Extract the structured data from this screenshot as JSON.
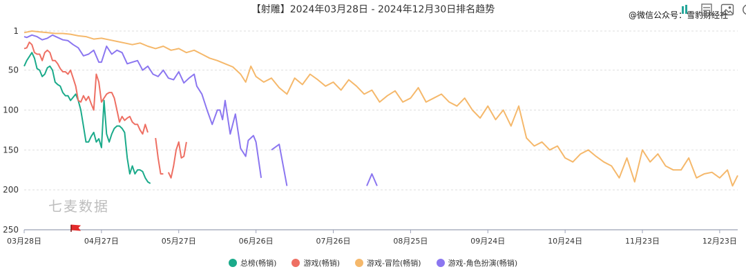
{
  "header": {
    "wechat_label": "@微信公众号：雪豹财经社",
    "toolbar": [
      {
        "icon": "bar-chart-icon"
      },
      {
        "icon": "list-icon"
      },
      {
        "icon": "save-image-icon"
      },
      {
        "icon": "refresh-icon"
      }
    ]
  },
  "brand_watermark": "七麦数据",
  "chart_data": {
    "type": "line",
    "title": "【射雕】2024年03月28日 - 2024年12月30日排名趋势",
    "x_ticks": [
      "03月28日",
      "04月27日",
      "05月27日",
      "06月26日",
      "07月26日",
      "08月25日",
      "09月24日",
      "10月24日",
      "11月23日",
      "12月23日"
    ],
    "y_ticks": [
      "1",
      "50",
      "100",
      "150",
      "200",
      "250"
    ],
    "ylim": [
      1,
      250
    ],
    "y_inverted": true,
    "grid": true,
    "legend_position": "bottom",
    "date_range": [
      "2024-03-28",
      "2024-12-30"
    ],
    "series": [
      {
        "name": "总榜(畅销)",
        "color": "#1aaa8a",
        "points": [
          [
            "2024-03-28",
            45
          ],
          [
            "2024-03-29",
            38
          ],
          [
            "2024-03-31",
            28
          ],
          [
            "2024-04-01",
            35
          ],
          [
            "2024-04-02",
            48
          ],
          [
            "2024-04-03",
            50
          ],
          [
            "2024-04-04",
            58
          ],
          [
            "2024-04-05",
            55
          ],
          [
            "2024-04-06",
            47
          ],
          [
            "2024-04-07",
            45
          ],
          [
            "2024-04-08",
            50
          ],
          [
            "2024-04-09",
            65
          ],
          [
            "2024-04-10",
            68
          ],
          [
            "2024-04-11",
            70
          ],
          [
            "2024-04-12",
            78
          ],
          [
            "2024-04-13",
            82
          ],
          [
            "2024-04-14",
            82
          ],
          [
            "2024-04-15",
            88
          ],
          [
            "2024-04-16",
            84
          ],
          [
            "2024-04-17",
            80
          ],
          [
            "2024-04-18",
            88
          ],
          [
            "2024-04-19",
            100
          ],
          [
            "2024-04-20",
            120
          ],
          [
            "2024-04-21",
            140
          ],
          [
            "2024-04-22",
            140
          ],
          [
            "2024-04-23",
            133
          ],
          [
            "2024-04-24",
            128
          ],
          [
            "2024-04-25",
            140
          ],
          [
            "2024-04-26",
            136
          ],
          [
            "2024-04-27",
            147
          ],
          [
            "2024-04-28",
            88
          ],
          [
            "2024-04-29",
            130
          ],
          [
            "2024-04-30",
            140
          ],
          [
            "2024-05-01",
            130
          ],
          [
            "2024-05-02",
            123
          ],
          [
            "2024-05-03",
            120
          ],
          [
            "2024-05-04",
            120
          ],
          [
            "2024-05-05",
            123
          ],
          [
            "2024-05-06",
            128
          ],
          [
            "2024-05-07",
            160
          ],
          [
            "2024-05-08",
            180
          ],
          [
            "2024-05-09",
            170
          ],
          [
            "2024-05-10",
            180
          ],
          [
            "2024-05-11",
            175
          ],
          [
            "2024-05-12",
            175
          ],
          [
            "2024-05-13",
            177
          ],
          [
            "2024-05-14",
            185
          ],
          [
            "2024-05-15",
            190
          ],
          [
            "2024-05-16",
            192
          ]
        ]
      },
      {
        "name": "游戏(畅销)",
        "color": "#ee6f63",
        "points": [
          [
            "2024-03-28",
            23
          ],
          [
            "2024-03-29",
            22
          ],
          [
            "2024-03-30",
            15
          ],
          [
            "2024-03-31",
            18
          ],
          [
            "2024-04-01",
            28
          ],
          [
            "2024-04-02",
            30
          ],
          [
            "2024-04-03",
            30
          ],
          [
            "2024-04-04",
            38
          ],
          [
            "2024-04-05",
            28
          ],
          [
            "2024-04-06",
            25
          ],
          [
            "2024-04-07",
            28
          ],
          [
            "2024-04-08",
            38
          ],
          [
            "2024-04-09",
            38
          ],
          [
            "2024-04-10",
            42
          ],
          [
            "2024-04-11",
            48
          ],
          [
            "2024-04-12",
            52
          ],
          [
            "2024-04-13",
            52
          ],
          [
            "2024-04-14",
            55
          ],
          [
            "2024-04-15",
            50
          ],
          [
            "2024-04-16",
            60
          ],
          [
            "2024-04-17",
            70
          ],
          [
            "2024-04-18",
            88
          ],
          [
            "2024-04-19",
            90
          ],
          [
            "2024-04-20",
            82
          ],
          [
            "2024-04-21",
            88
          ],
          [
            "2024-04-22",
            83
          ],
          [
            "2024-04-23",
            92
          ],
          [
            "2024-04-24",
            100
          ],
          [
            "2024-04-25",
            55
          ],
          [
            "2024-04-26",
            65
          ],
          [
            "2024-04-27",
            90
          ],
          [
            "2024-04-28",
            85
          ],
          [
            "2024-04-29",
            80
          ],
          [
            "2024-04-30",
            78
          ],
          [
            "2024-05-01",
            78
          ],
          [
            "2024-05-02",
            85
          ],
          [
            "2024-05-03",
            100
          ],
          [
            "2024-05-04",
            115
          ],
          [
            "2024-05-05",
            108
          ],
          [
            "2024-05-06",
            113
          ],
          [
            "2024-05-07",
            110
          ],
          [
            "2024-05-08",
            108
          ],
          [
            "2024-05-09",
            115
          ],
          [
            "2024-05-10",
            118
          ],
          [
            "2024-05-11",
            118
          ],
          [
            "2024-05-12",
            125
          ],
          [
            "2024-05-13",
            130
          ],
          [
            "2024-05-14",
            118
          ],
          [
            "2024-05-15",
            128
          ],
          null,
          [
            "2024-05-18",
            135
          ],
          [
            "2024-05-19",
            160
          ],
          [
            "2024-05-20",
            180
          ],
          [
            "2024-05-21",
            180
          ],
          null,
          [
            "2024-05-23",
            178
          ],
          [
            "2024-05-24",
            185
          ],
          [
            "2024-05-25",
            170
          ],
          [
            "2024-05-26",
            150
          ],
          [
            "2024-05-27",
            140
          ],
          [
            "2024-05-28",
            160
          ],
          [
            "2024-05-29",
            158
          ],
          [
            "2024-05-30",
            140
          ],
          null,
          [
            "2024-06-01",
            185
          ]
        ]
      },
      {
        "name": "游戏-冒险(畅销)",
        "color": "#f5b86b",
        "points": [
          [
            "2024-03-28",
            3
          ],
          [
            "2024-03-31",
            1
          ],
          [
            "2024-04-03",
            2
          ],
          [
            "2024-04-06",
            3
          ],
          [
            "2024-04-09",
            4
          ],
          [
            "2024-04-12",
            4
          ],
          [
            "2024-04-15",
            5
          ],
          [
            "2024-04-18",
            7
          ],
          [
            "2024-04-21",
            8
          ],
          [
            "2024-04-24",
            11
          ],
          [
            "2024-04-27",
            10
          ],
          [
            "2024-04-30",
            12
          ],
          [
            "2024-05-03",
            14
          ],
          [
            "2024-05-06",
            16
          ],
          [
            "2024-05-09",
            18
          ],
          [
            "2024-05-12",
            16
          ],
          [
            "2024-05-15",
            20
          ],
          [
            "2024-05-18",
            23
          ],
          [
            "2024-05-21",
            20
          ],
          [
            "2024-05-24",
            25
          ],
          [
            "2024-05-27",
            23
          ],
          [
            "2024-05-30",
            28
          ],
          [
            "2024-06-02",
            25
          ],
          [
            "2024-06-05",
            30
          ],
          [
            "2024-06-08",
            35
          ],
          [
            "2024-06-11",
            38
          ],
          [
            "2024-06-14",
            42
          ],
          [
            "2024-06-17",
            46
          ],
          [
            "2024-06-20",
            55
          ],
          [
            "2024-06-22",
            65
          ],
          [
            "2024-06-24",
            45
          ],
          [
            "2024-06-26",
            58
          ],
          [
            "2024-06-29",
            65
          ],
          [
            "2024-07-02",
            60
          ],
          [
            "2024-07-05",
            72
          ],
          [
            "2024-07-08",
            80
          ],
          [
            "2024-07-11",
            60
          ],
          [
            "2024-07-14",
            68
          ],
          [
            "2024-07-17",
            55
          ],
          [
            "2024-07-20",
            62
          ],
          [
            "2024-07-23",
            70
          ],
          [
            "2024-07-26",
            65
          ],
          [
            "2024-07-29",
            75
          ],
          [
            "2024-08-01",
            62
          ],
          [
            "2024-08-04",
            70
          ],
          [
            "2024-08-07",
            80
          ],
          [
            "2024-08-10",
            75
          ],
          [
            "2024-08-13",
            90
          ],
          [
            "2024-08-16",
            82
          ],
          [
            "2024-08-19",
            76
          ],
          [
            "2024-08-22",
            90
          ],
          [
            "2024-08-25",
            85
          ],
          [
            "2024-08-28",
            72
          ],
          [
            "2024-08-31",
            90
          ],
          [
            "2024-09-03",
            85
          ],
          [
            "2024-09-06",
            80
          ],
          [
            "2024-09-09",
            90
          ],
          [
            "2024-09-12",
            95
          ],
          [
            "2024-09-15",
            85
          ],
          [
            "2024-09-18",
            100
          ],
          [
            "2024-09-21",
            110
          ],
          [
            "2024-09-24",
            95
          ],
          [
            "2024-09-27",
            112
          ],
          [
            "2024-09-30",
            100
          ],
          [
            "2024-10-03",
            120
          ],
          [
            "2024-10-06",
            95
          ],
          [
            "2024-10-09",
            135
          ],
          [
            "2024-10-12",
            145
          ],
          [
            "2024-10-15",
            140
          ],
          [
            "2024-10-18",
            150
          ],
          [
            "2024-10-21",
            145
          ],
          [
            "2024-10-24",
            160
          ],
          [
            "2024-10-27",
            165
          ],
          [
            "2024-10-30",
            155
          ],
          [
            "2024-11-02",
            150
          ],
          [
            "2024-11-05",
            158
          ],
          [
            "2024-11-08",
            165
          ],
          [
            "2024-11-11",
            170
          ],
          [
            "2024-11-14",
            185
          ],
          [
            "2024-11-17",
            160
          ],
          [
            "2024-11-20",
            190
          ],
          [
            "2024-11-23",
            150
          ],
          [
            "2024-11-26",
            165
          ],
          [
            "2024-11-29",
            155
          ],
          [
            "2024-12-02",
            170
          ],
          [
            "2024-12-05",
            175
          ],
          [
            "2024-12-08",
            175
          ],
          [
            "2024-12-11",
            160
          ],
          [
            "2024-12-14",
            185
          ],
          [
            "2024-12-17",
            180
          ],
          [
            "2024-12-20",
            178
          ],
          [
            "2024-12-23",
            185
          ],
          [
            "2024-12-26",
            175
          ],
          [
            "2024-12-28",
            195
          ],
          [
            "2024-12-30",
            182
          ]
        ]
      },
      {
        "name": "游戏-角色扮演(畅销)",
        "color": "#8b76f0",
        "points": [
          [
            "2024-03-28",
            8
          ],
          [
            "2024-03-29",
            9
          ],
          [
            "2024-03-31",
            6
          ],
          [
            "2024-04-02",
            8
          ],
          [
            "2024-04-04",
            12
          ],
          [
            "2024-04-06",
            10
          ],
          [
            "2024-04-08",
            6
          ],
          [
            "2024-04-10",
            9
          ],
          [
            "2024-04-12",
            12
          ],
          [
            "2024-04-14",
            13
          ],
          [
            "2024-04-16",
            18
          ],
          [
            "2024-04-18",
            22
          ],
          [
            "2024-04-20",
            32
          ],
          [
            "2024-04-22",
            30
          ],
          [
            "2024-04-24",
            25
          ],
          [
            "2024-04-26",
            40
          ],
          [
            "2024-04-27",
            40
          ],
          [
            "2024-04-29",
            20
          ],
          [
            "2024-05-01",
            30
          ],
          [
            "2024-05-03",
            25
          ],
          [
            "2024-05-05",
            28
          ],
          [
            "2024-05-07",
            42
          ],
          [
            "2024-05-09",
            40
          ],
          [
            "2024-05-11",
            38
          ],
          [
            "2024-05-13",
            50
          ],
          [
            "2024-05-15",
            45
          ],
          [
            "2024-05-17",
            55
          ],
          [
            "2024-05-19",
            58
          ],
          [
            "2024-05-21",
            50
          ],
          [
            "2024-05-23",
            60
          ],
          [
            "2024-05-25",
            62
          ],
          [
            "2024-05-27",
            52
          ],
          [
            "2024-05-29",
            66
          ],
          [
            "2024-05-31",
            60
          ],
          [
            "2024-06-02",
            55
          ],
          [
            "2024-06-03",
            70
          ],
          [
            "2024-06-05",
            80
          ],
          [
            "2024-06-07",
            100
          ],
          [
            "2024-06-09",
            118
          ],
          [
            "2024-06-11",
            100
          ],
          [
            "2024-06-12",
            100
          ],
          [
            "2024-06-13",
            112
          ],
          [
            "2024-06-14",
            88
          ],
          [
            "2024-06-16",
            130
          ],
          [
            "2024-06-18",
            105
          ],
          [
            "2024-06-20",
            148
          ],
          [
            "2024-06-22",
            158
          ],
          [
            "2024-06-23",
            138
          ],
          [
            "2024-06-25",
            132
          ],
          [
            "2024-06-26",
            140
          ],
          [
            "2024-06-28",
            185
          ],
          null,
          [
            "2024-07-02",
            150
          ],
          [
            "2024-07-05",
            143
          ],
          [
            "2024-07-08",
            195
          ],
          null,
          [
            "2024-08-08",
            195
          ],
          [
            "2024-08-10",
            180
          ],
          [
            "2024-08-12",
            195
          ]
        ]
      }
    ]
  }
}
